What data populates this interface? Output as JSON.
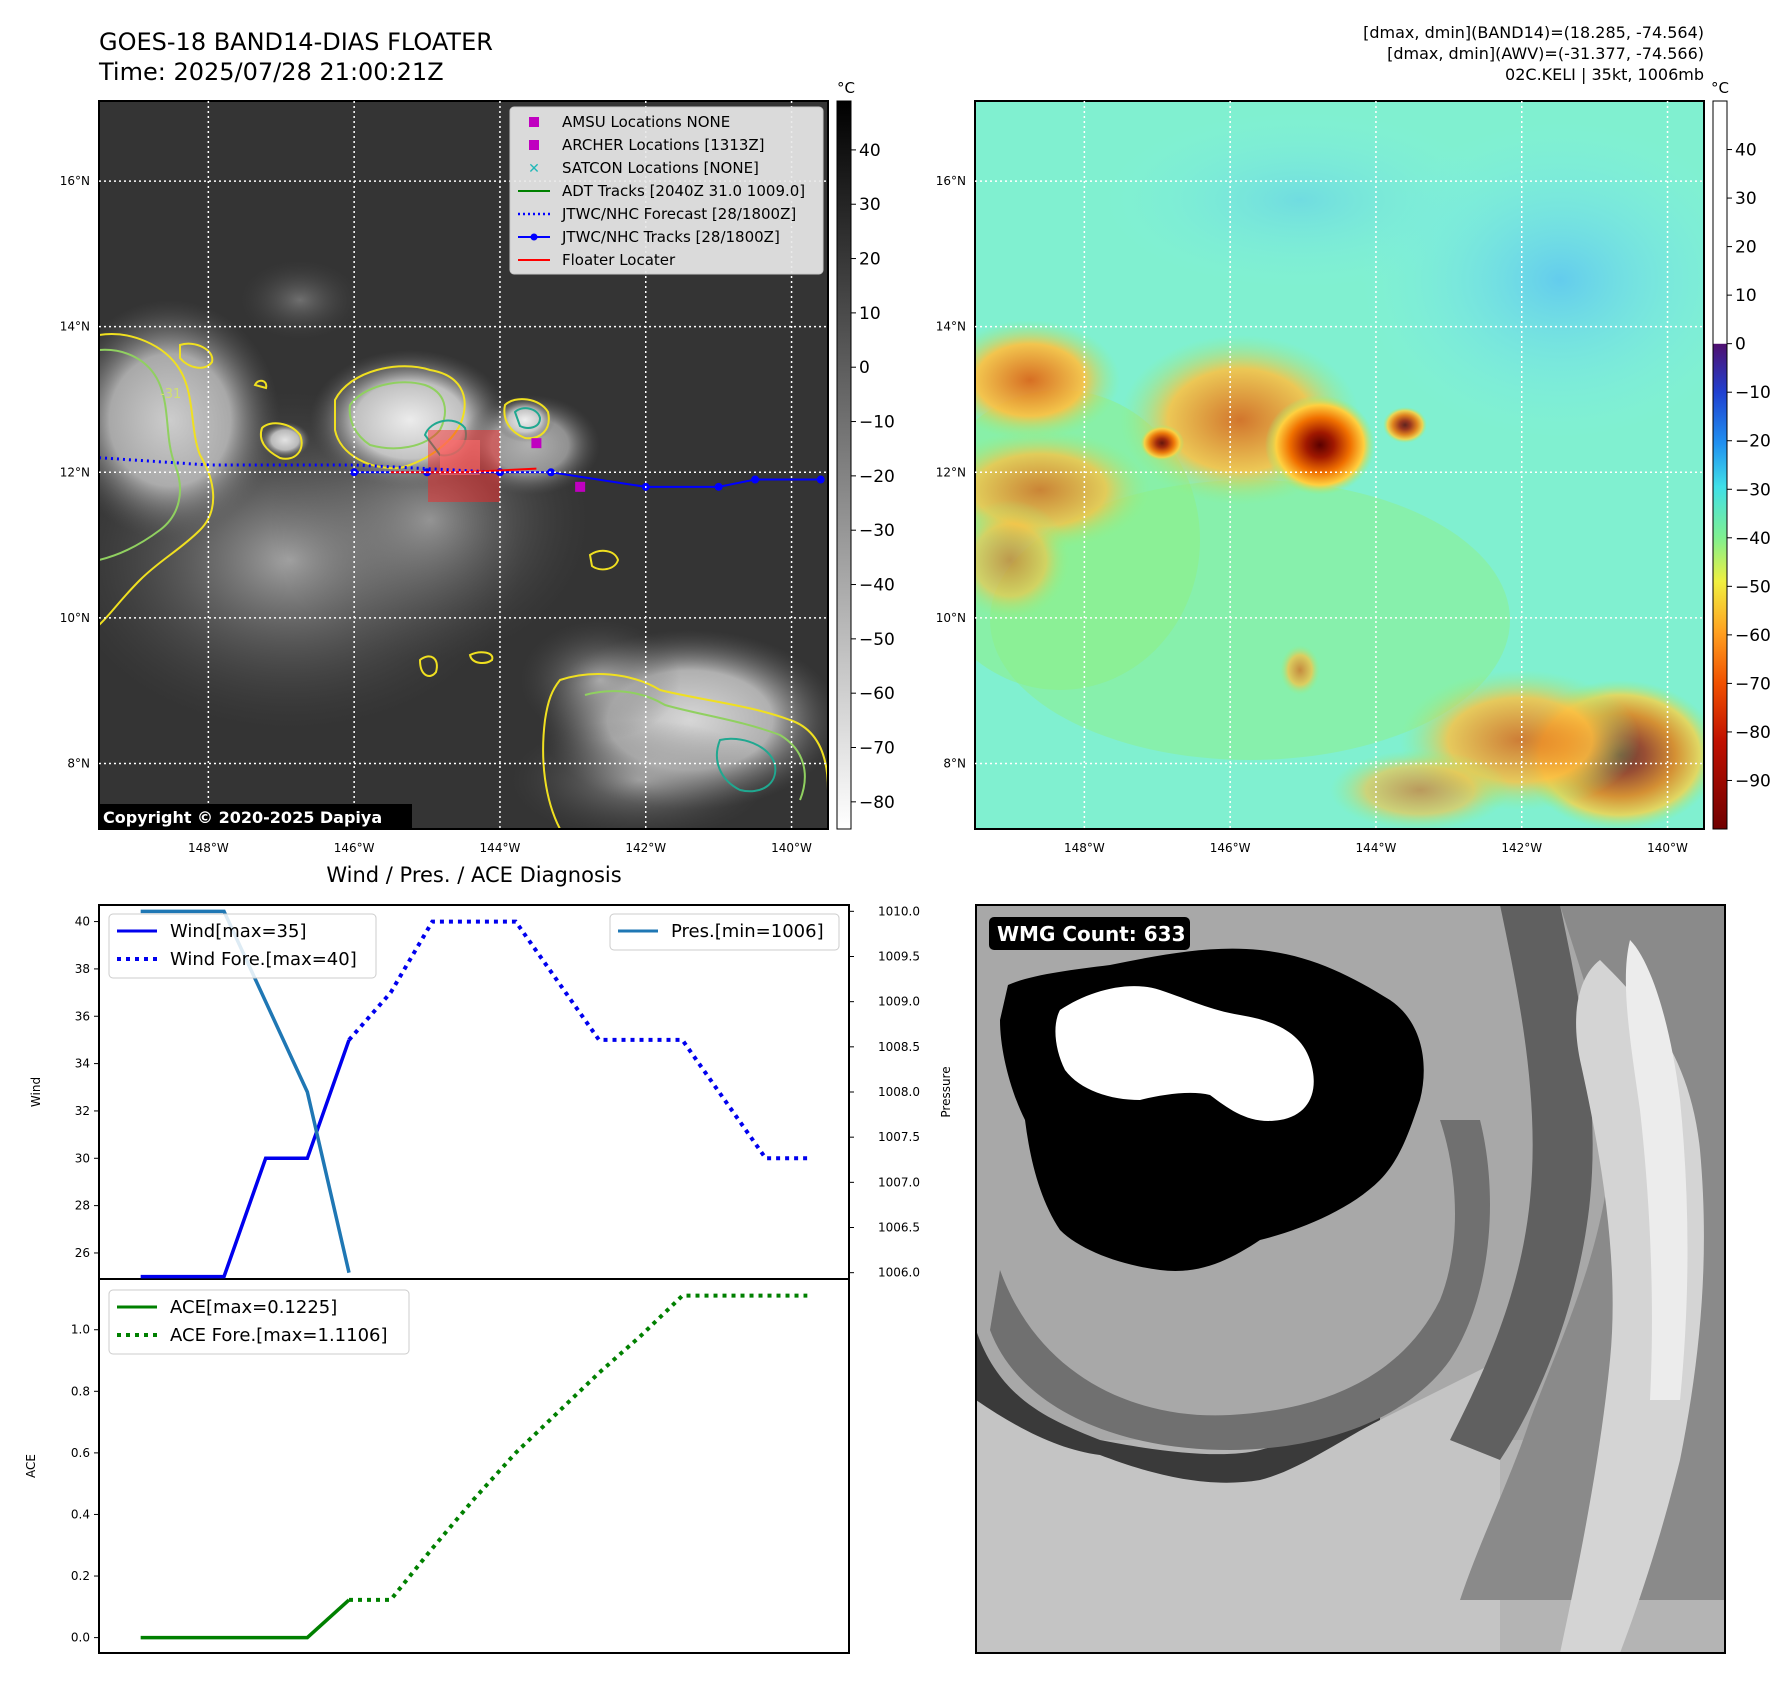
{
  "header": {
    "title_line1": "GOES-18 BAND14-DIAS FLOATER",
    "title_line2": "Time: 2025/07/28 21:00:21Z",
    "info_line1": "[dmax, dmin](BAND14)=(18.285, -74.564)",
    "info_line2": "[dmax, dmin](AWV)=(-31.377, -74.566)",
    "info_line3": "02C.KELI | 35kt, 1006mb"
  },
  "map_common": {
    "lon_ticks": [
      "148°W",
      "146°W",
      "144°W",
      "142°W",
      "140°W"
    ],
    "lat_ticks": [
      "16°N",
      "14°N",
      "12°N",
      "10°N",
      "8°N"
    ],
    "lon_values": [
      -148,
      -146,
      -144,
      -142,
      -140
    ],
    "lat_values": [
      16,
      14,
      12,
      10,
      8
    ],
    "lon_range": [
      -149.5,
      -139.5
    ],
    "lat_range": [
      7.1,
      17.1
    ]
  },
  "ir_panel": {
    "copyright": "Copyright © 2020-2025 Dapiya",
    "contour_label": "-31",
    "colorbar_unit": "°C",
    "colorbar_ticks": [
      "40",
      "30",
      "20",
      "10",
      "0",
      "−10",
      "−20",
      "−30",
      "−40",
      "−50",
      "−60",
      "−70",
      "−80"
    ],
    "colorbar_values": [
      40,
      30,
      20,
      10,
      0,
      -10,
      -20,
      -30,
      -40,
      -50,
      -60,
      -70,
      -80
    ],
    "colorbar_range": [
      -85,
      49
    ],
    "legend": [
      {
        "label": "AMSU Locations NONE",
        "marker": "square",
        "color": "#c000c0"
      },
      {
        "label": "ARCHER Locations [1313Z]",
        "marker": "square",
        "color": "#c000c0"
      },
      {
        "label": "SATCON Locations [NONE]",
        "marker": "x",
        "color": "#20b8b8"
      },
      {
        "label": "ADT Tracks [2040Z 31.0 1009.0]",
        "marker": "line",
        "color": "#008000"
      },
      {
        "label": "JTWC/NHC Forecast [28/1800Z]",
        "marker": "dotted",
        "color": "#0000ff"
      },
      {
        "label": "JTWC/NHC Tracks [28/1800Z]",
        "marker": "line-dot",
        "color": "#0000ff"
      },
      {
        "label": "Floater Locater",
        "marker": "line",
        "color": "#ff0000"
      }
    ],
    "jtwc_track": [
      [
        -146.0,
        12.0
      ],
      [
        -145.0,
        12.0
      ],
      [
        -144.0,
        12.0
      ],
      [
        -143.3,
        12.0
      ],
      [
        -142.0,
        11.8
      ],
      [
        -141.0,
        11.8
      ],
      [
        -140.5,
        11.9
      ],
      [
        -139.6,
        11.9
      ]
    ],
    "forecast_track": [
      [
        -149.5,
        12.2
      ],
      [
        -148.0,
        12.1
      ],
      [
        -146.0,
        12.1
      ],
      [
        -145.0,
        12.05
      ],
      [
        -144.0,
        12.0
      ]
    ],
    "archer_points": [
      [
        -143.5,
        12.4
      ],
      [
        -142.9,
        11.8
      ]
    ]
  },
  "awv_panel": {
    "colorbar_unit": "°C",
    "colorbar_ticks": [
      "40",
      "30",
      "20",
      "10",
      "0",
      "−10",
      "−20",
      "−30",
      "−40",
      "−50",
      "−60",
      "−70",
      "−80",
      "−90"
    ],
    "colorbar_values": [
      40,
      30,
      20,
      10,
      0,
      -10,
      -20,
      -30,
      -40,
      -50,
      -60,
      -70,
      -80,
      -90
    ],
    "colorbar_range": [
      -100,
      50
    ]
  },
  "diagnosis": {
    "title": "Wind / Pres. / ACE Diagnosis"
  },
  "chart_data": [
    {
      "type": "line",
      "title": "Wind / Pres. / ACE Diagnosis",
      "ylabel": "Wind",
      "y2label": "Pressure",
      "ylim": [
        24.9,
        40.7
      ],
      "y2lim": [
        1005.93,
        1010.07
      ],
      "yticks": [
        26,
        28,
        30,
        32,
        34,
        36,
        38,
        40
      ],
      "y2ticks": [
        1006.0,
        1006.5,
        1007.0,
        1007.5,
        1008.0,
        1008.5,
        1009.0,
        1009.5,
        1010.0
      ],
      "xlim": [
        -1,
        17
      ],
      "series": [
        {
          "name": "Wind[max=35]",
          "axis": "left",
          "style": "solid",
          "color": "#0000ee",
          "x": [
            0,
            2,
            3,
            4,
            5
          ],
          "y": [
            25,
            25,
            30,
            30,
            35
          ]
        },
        {
          "name": "Wind Fore.[max=40]",
          "axis": "left",
          "style": "dotted",
          "color": "#0000ee",
          "x": [
            5,
            6,
            7,
            8,
            9,
            10,
            11,
            12,
            13,
            14,
            15,
            16
          ],
          "y": [
            35,
            37,
            40,
            40,
            40,
            37.5,
            35,
            35,
            35,
            32.5,
            30,
            30
          ]
        },
        {
          "name": "Pres.[min=1006]",
          "axis": "right",
          "style": "solid",
          "color": "#1f77b4",
          "x": [
            0,
            2,
            4,
            5
          ],
          "y": [
            1010,
            1010,
            1008,
            1006
          ]
        }
      ]
    },
    {
      "type": "line",
      "ylabel": "ACE",
      "ylim": [
        -0.05,
        1.1648
      ],
      "yticks": [
        0.0,
        0.2,
        0.4,
        0.6,
        0.8,
        1.0
      ],
      "xlim": [
        -1,
        17
      ],
      "series": [
        {
          "name": "ACE[max=0.1225]",
          "style": "solid",
          "color": "#008000",
          "x": [
            0,
            2,
            4,
            5
          ],
          "y": [
            0,
            0,
            0,
            0.1225
          ]
        },
        {
          "name": "ACE Fore.[max=1.1106]",
          "style": "dotted",
          "color": "#008000",
          "x": [
            5,
            6,
            7,
            8,
            9,
            10,
            11,
            12,
            13,
            14,
            15,
            16
          ],
          "y": [
            0.1225,
            0.1225,
            0.29,
            0.45,
            0.6,
            0.73,
            0.86,
            0.98,
            1.1106,
            1.1106,
            1.1106,
            1.1106
          ]
        }
      ]
    }
  ],
  "wmg_panel": {
    "label": "WMG Count: 633"
  }
}
